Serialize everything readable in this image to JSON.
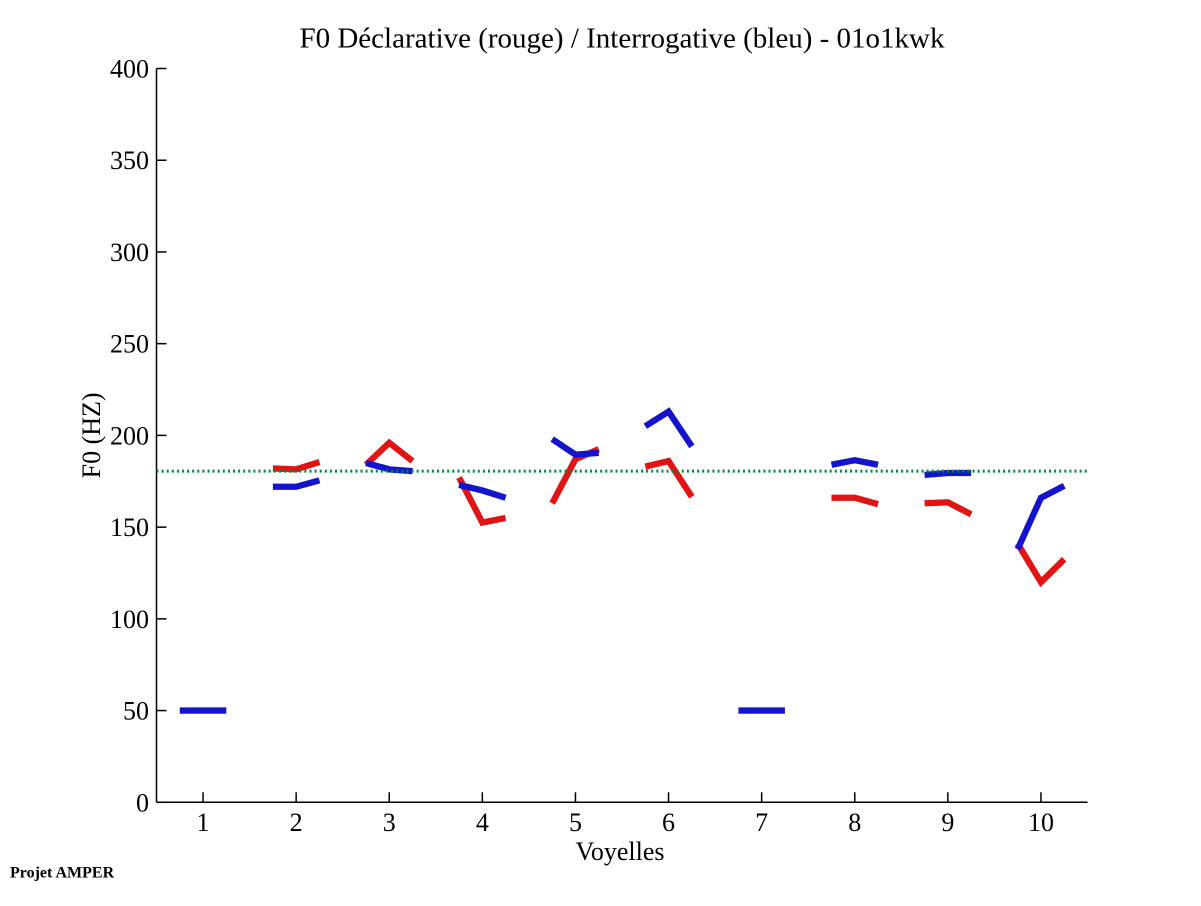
{
  "figure": {
    "footer": "Projet AMPER"
  },
  "chart_data": {
    "type": "line",
    "title": "F0 Déclarative (rouge) / Interrogative (bleu) - 01o1kwk",
    "xlabel": "Voyelles",
    "ylabel": "F0 (HZ)",
    "xlim": [
      0.5,
      10.5
    ],
    "ylim": [
      0,
      400
    ],
    "xticks": [
      1,
      2,
      3,
      4,
      5,
      6,
      7,
      8,
      9,
      10
    ],
    "yticks": [
      0,
      50,
      100,
      150,
      200,
      250,
      300,
      350,
      400
    ],
    "grid": false,
    "legend": "none (encoded in title: rouge = déclarative, bleu = interrogative)",
    "x_offsets_per_vowel": [
      -0.25,
      0,
      0.25
    ],
    "reference_line": {
      "y": 180.5,
      "color": "#008840",
      "style": "dotted"
    },
    "colors": {
      "declarative": "#e11414",
      "interrogative": "#1414cc"
    },
    "line_width": 6.3,
    "series": [
      {
        "name": "Déclarative (rouge)",
        "color": "#e11414",
        "values": [
          null,
          [
            182,
            181.5,
            185.5
          ],
          [
            184,
            196,
            186
          ],
          [
            177,
            152.5,
            155
          ],
          [
            163,
            187,
            192.5
          ],
          [
            183,
            186,
            166.5
          ],
          null,
          [
            166,
            166,
            162.5
          ],
          [
            163,
            163.5,
            157
          ],
          [
            141,
            120,
            132.5
          ]
        ]
      },
      {
        "name": "Interrogative (bleu)",
        "color": "#1414cc",
        "values": [
          [
            50,
            50,
            50
          ],
          [
            172,
            172,
            175.5
          ],
          [
            185,
            181.5,
            180.5
          ],
          [
            173,
            170,
            166
          ],
          [
            198,
            189.5,
            190.5
          ],
          [
            205,
            213,
            194
          ],
          [
            50,
            50,
            50
          ],
          [
            184,
            186.5,
            184
          ],
          [
            178.5,
            179.5,
            179.5
          ],
          [
            138,
            166,
            172.5
          ]
        ]
      }
    ]
  }
}
